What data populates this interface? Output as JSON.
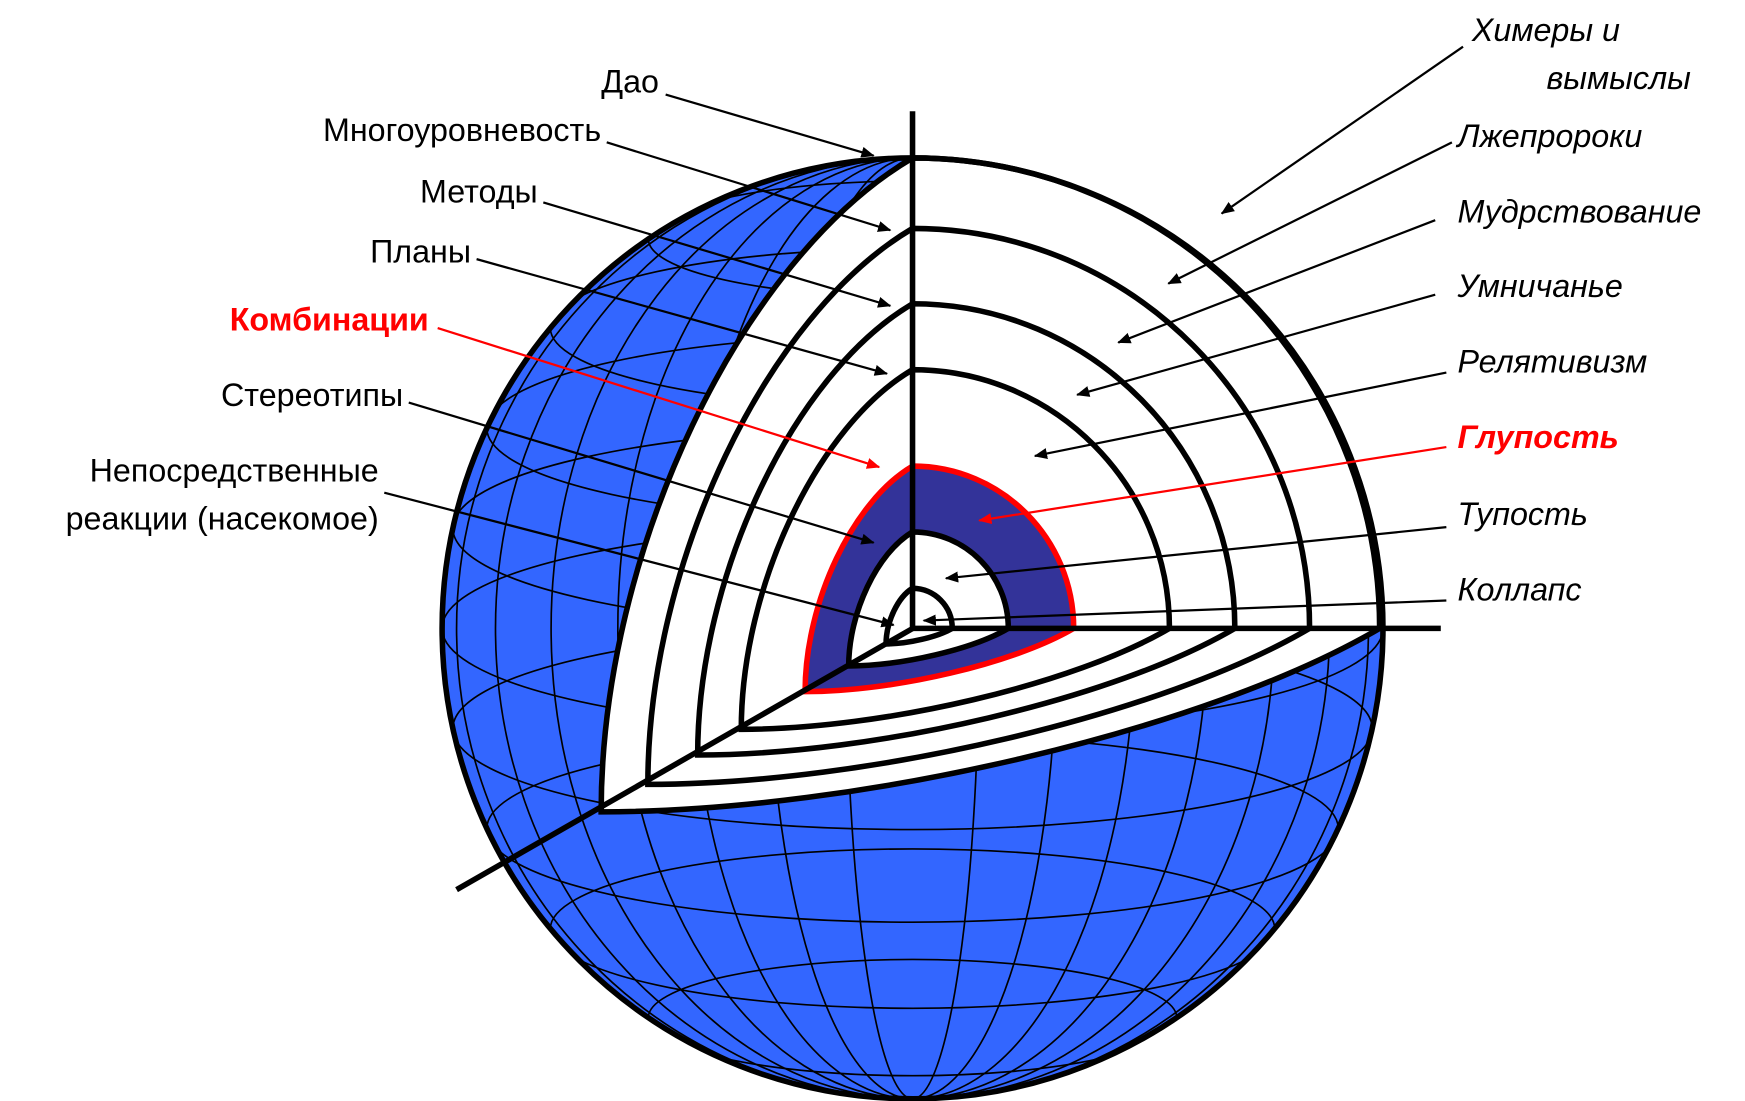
{
  "labels": {
    "left": [
      {
        "lines": [
          "Дао"
        ]
      },
      {
        "lines": [
          "Многоуровневость"
        ]
      },
      {
        "lines": [
          "Методы"
        ]
      },
      {
        "lines": [
          "Планы"
        ]
      },
      {
        "lines": [
          "Комбинации"
        ]
      },
      {
        "lines": [
          "Стереотипы"
        ]
      },
      {
        "lines": [
          "Непосредственные",
          "реакции  (насекомое)"
        ]
      }
    ],
    "right": [
      {
        "lines": [
          "Химеры и",
          "вымыслы"
        ]
      },
      {
        "lines": [
          "Лжепророки"
        ]
      },
      {
        "lines": [
          "Мудрствование"
        ]
      },
      {
        "lines": [
          "Умничанье"
        ]
      },
      {
        "lines": [
          "Релятивизм"
        ]
      },
      {
        "lines": [
          "Глупость"
        ]
      },
      {
        "lines": [
          "Тупость"
        ]
      },
      {
        "lines": [
          "Коллапс"
        ]
      }
    ]
  }
}
